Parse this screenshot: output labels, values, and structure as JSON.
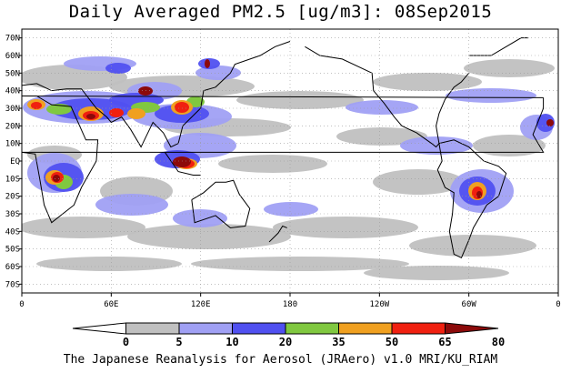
{
  "title": "Daily Averaged PM2.5 [ug/m3]: 08Sep2015",
  "footer": "The Japanese Reanalysis for Aerosol (JRAero) v1.0 MRI/KU_RIAM",
  "map": {
    "projection": "equirectangular",
    "lon_range": [
      0,
      360
    ],
    "lat_range": [
      -75,
      75
    ],
    "grid": "dotted",
    "lat_labels": [
      {
        "lat": 70,
        "text": "70N"
      },
      {
        "lat": 60,
        "text": "60N"
      },
      {
        "lat": 50,
        "text": "50N"
      },
      {
        "lat": 40,
        "text": "40N"
      },
      {
        "lat": 30,
        "text": "30N"
      },
      {
        "lat": 20,
        "text": "20N"
      },
      {
        "lat": 10,
        "text": "10N"
      },
      {
        "lat": 0,
        "text": "EQ"
      },
      {
        "lat": -10,
        "text": "10S"
      },
      {
        "lat": -20,
        "text": "20S"
      },
      {
        "lat": -30,
        "text": "30S"
      },
      {
        "lat": -40,
        "text": "40S"
      },
      {
        "lat": -50,
        "text": "50S"
      },
      {
        "lat": -60,
        "text": "60S"
      },
      {
        "lat": -70,
        "text": "70S"
      }
    ],
    "lon_labels": [
      {
        "lon": 0,
        "text": "0"
      },
      {
        "lon": 60,
        "text": "60E"
      },
      {
        "lon": 120,
        "text": "120E"
      },
      {
        "lon": 180,
        "text": "180"
      },
      {
        "lon": 240,
        "text": "120W"
      },
      {
        "lon": 300,
        "text": "60W"
      },
      {
        "lon": 360,
        "text": "0"
      }
    ],
    "colors": {
      "ocean": "#ffffff",
      "coast": "#000000",
      "grid": "#9a9a9a"
    }
  },
  "colorbar": {
    "levels": [
      {
        "label": "0",
        "color": "#ffffff"
      },
      {
        "label": "5",
        "color": "#c0c0c0"
      },
      {
        "label": "10",
        "color": "#a0a0f4"
      },
      {
        "label": "20",
        "color": "#5050f0"
      },
      {
        "label": "35",
        "color": "#80c840"
      },
      {
        "label": "50",
        "color": "#f0a020"
      },
      {
        "label": "65",
        "color": "#f02010"
      },
      {
        "label": "80",
        "color": "#8c0a0a"
      }
    ],
    "boundaries": [
      "0",
      "5",
      "10",
      "20",
      "35",
      "50",
      "65",
      "80"
    ]
  }
}
